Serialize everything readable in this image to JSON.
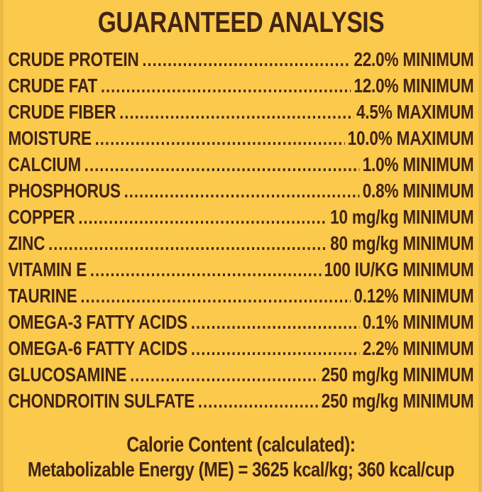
{
  "page": {
    "colors": {
      "background": "#FBC94C",
      "text": "#412415"
    }
  },
  "title": "GUARANTEED ANALYSIS",
  "rows": [
    {
      "label": "CRUDE PROTEIN",
      "value": "22.0% MINIMUM"
    },
    {
      "label": "CRUDE FAT",
      "value": "12.0% MINIMUM"
    },
    {
      "label": "CRUDE FIBER",
      "value": "4.5% MAXIMUM"
    },
    {
      "label": "MOISTURE",
      "value": "10.0% MAXIMUM"
    },
    {
      "label": "CALCIUM",
      "value": "1.0% MINIMUM"
    },
    {
      "label": "PHOSPHORUS",
      "value": "0.8% MINIMUM"
    },
    {
      "label": "COPPER",
      "value": "10 mg/kg MINIMUM"
    },
    {
      "label": "ZINC",
      "value": "80 mg/kg MINIMUM"
    },
    {
      "label": "VITAMIN E",
      "value": "100 IU/KG MINIMUM"
    },
    {
      "label": "TAURINE",
      "value": "0.12% MINIMUM"
    },
    {
      "label": "OMEGA-3 FATTY ACIDS",
      "value": "0.1% MINIMUM"
    },
    {
      "label": "OMEGA-6 FATTY ACIDS",
      "value": "2.2% MINIMUM"
    },
    {
      "label": "GLUCOSAMINE",
      "value": "250 mg/kg MINIMUM"
    },
    {
      "label": "CHONDROITIN SULFATE",
      "value": "250 mg/kg MINIMUM"
    }
  ],
  "calorie": {
    "heading": "Calorie Content (calculated):",
    "line": "Metabolizable Energy (ME) = 3625 kcal/kg; 360 kcal/cup"
  }
}
